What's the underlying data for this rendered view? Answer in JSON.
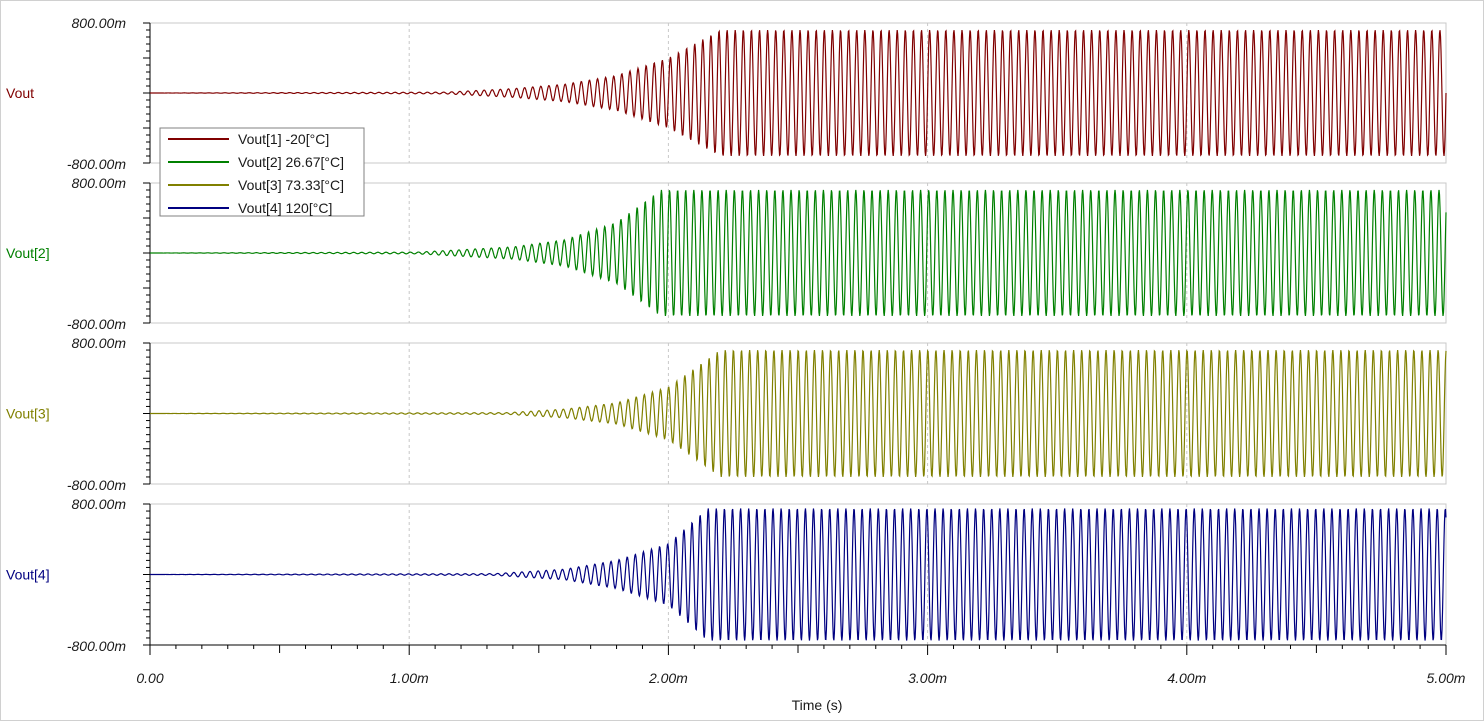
{
  "chart_data": {
    "type": "line",
    "xlabel": "Time (s)",
    "xlim": [
      0,
      0.005
    ],
    "x_ticks": [
      0,
      0.001,
      0.002,
      0.003,
      0.004,
      0.005
    ],
    "x_tick_labels": [
      "0.00",
      "1.00m",
      "2.00m",
      "3.00m",
      "4.00m",
      "5.00m"
    ],
    "ylim": [
      -0.8,
      0.8
    ],
    "y_tick_labels": [
      "800.00m",
      "-800.00m"
    ],
    "grid": true,
    "legend_position": "top-left",
    "series": [
      {
        "name": "Vout[1]  -20[°C]",
        "panel_label": "Vout",
        "color": "#800000",
        "x": [
          0,
          0.00114,
          0.0014,
          0.0016,
          0.0018,
          0.002,
          0.0022,
          0.005
        ],
        "amplitude": [
          0,
          0.01,
          0.05,
          0.1,
          0.2,
          0.4,
          0.72,
          0.72
        ]
      },
      {
        "name": "Vout[2]  26.67[°C]",
        "panel_label": "Vout[2]",
        "color": "#008000",
        "x": [
          0,
          0.00103,
          0.0014,
          0.0016,
          0.0018,
          0.00197,
          0.005
        ],
        "amplitude": [
          0,
          0.01,
          0.07,
          0.15,
          0.35,
          0.72,
          0.72
        ]
      },
      {
        "name": "Vout[3]  73.33[°C]",
        "panel_label": "Vout[3]",
        "color": "#808000",
        "x": [
          0,
          0.00138,
          0.0016,
          0.0018,
          0.002,
          0.0022,
          0.005
        ],
        "amplitude": [
          0,
          0.01,
          0.05,
          0.12,
          0.3,
          0.72,
          0.72
        ]
      },
      {
        "name": "Vout[4]  120[°C]",
        "panel_label": "Vout[4]",
        "color": "#000080",
        "x": [
          0,
          0.00133,
          0.0016,
          0.0018,
          0.002,
          0.00215,
          0.005
        ],
        "amplitude": [
          0,
          0.01,
          0.06,
          0.16,
          0.35,
          0.75,
          0.75
        ]
      }
    ]
  }
}
